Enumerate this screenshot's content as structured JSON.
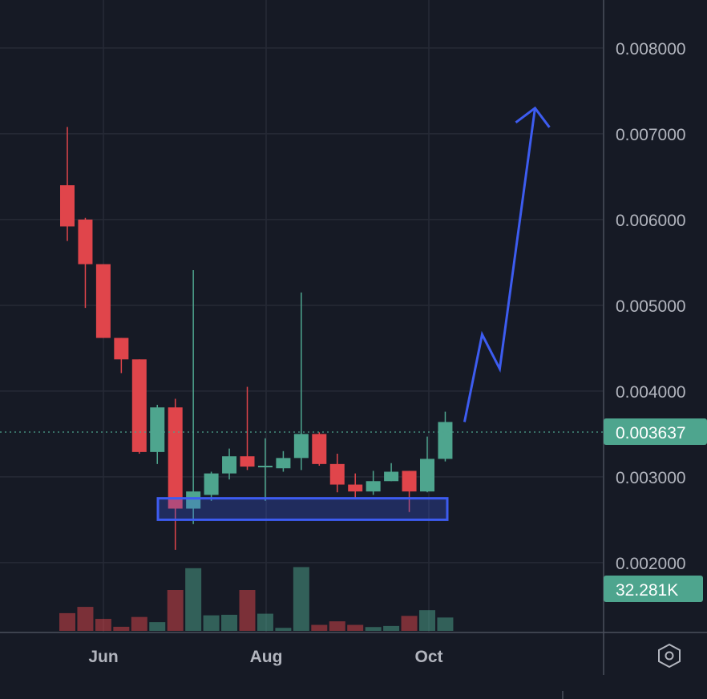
{
  "chart_data": {
    "type": "candlestick",
    "x_ticks": [
      "Jun",
      "Aug",
      "Oct"
    ],
    "y_ticks": [
      "0.008000",
      "0.007000",
      "0.006000",
      "0.005000",
      "0.004000",
      "0.003000",
      "0.002000"
    ],
    "ylim": [
      0.0013,
      0.0087
    ],
    "last_price_label": "0.003637",
    "last_volume_label": "32.281K",
    "colors": {
      "up": "#4ea58e",
      "down": "#e0454b",
      "drawing": "#3d5cf0",
      "background": "#161a25",
      "grid": "#262a36"
    },
    "candles": [
      {
        "o": 0.0064,
        "h": 0.00708,
        "l": 0.00575,
        "c": 0.00592,
        "v": 0.65
      },
      {
        "o": 0.006,
        "h": 0.00602,
        "l": 0.00497,
        "c": 0.00548,
        "v": 0.88
      },
      {
        "o": 0.00548,
        "h": 0.00548,
        "l": 0.00462,
        "c": 0.00462,
        "v": 0.44
      },
      {
        "o": 0.00462,
        "h": 0.00462,
        "l": 0.00421,
        "c": 0.00437,
        "v": 0.15
      },
      {
        "o": 0.00437,
        "h": 0.00437,
        "l": 0.00327,
        "c": 0.00329,
        "v": 0.51
      },
      {
        "o": 0.00329,
        "h": 0.00384,
        "l": 0.00315,
        "c": 0.00381,
        "v": 0.32
      },
      {
        "o": 0.00381,
        "h": 0.00391,
        "l": 0.00215,
        "c": 0.00263,
        "v": 1.5
      },
      {
        "o": 0.00263,
        "h": 0.00541,
        "l": 0.00245,
        "c": 0.00283,
        "v": 2.3
      },
      {
        "o": 0.00279,
        "h": 0.00306,
        "l": 0.00272,
        "c": 0.00304,
        "v": 0.57
      },
      {
        "o": 0.00304,
        "h": 0.00333,
        "l": 0.00297,
        "c": 0.00324,
        "v": 0.59
      },
      {
        "o": 0.00324,
        "h": 0.00405,
        "l": 0.00308,
        "c": 0.00312,
        "v": 1.5
      },
      {
        "o": 0.00313,
        "h": 0.00345,
        "l": 0.00272,
        "c": 0.00313,
        "v": 0.63
      },
      {
        "o": 0.0031,
        "h": 0.0033,
        "l": 0.00306,
        "c": 0.00322,
        "v": 0.11
      },
      {
        "o": 0.00322,
        "h": 0.00515,
        "l": 0.00308,
        "c": 0.0035,
        "v": 2.34
      },
      {
        "o": 0.0035,
        "h": 0.00352,
        "l": 0.00313,
        "c": 0.00315,
        "v": 0.22
      },
      {
        "o": 0.00315,
        "h": 0.00327,
        "l": 0.00282,
        "c": 0.00291,
        "v": 0.35
      },
      {
        "o": 0.00291,
        "h": 0.00304,
        "l": 0.00276,
        "c": 0.00283,
        "v": 0.22
      },
      {
        "o": 0.00283,
        "h": 0.00307,
        "l": 0.00279,
        "c": 0.00295,
        "v": 0.14
      },
      {
        "o": 0.00295,
        "h": 0.00316,
        "l": 0.00295,
        "c": 0.00306,
        "v": 0.18
      },
      {
        "o": 0.00307,
        "h": 0.00307,
        "l": 0.00259,
        "c": 0.00283,
        "v": 0.55
      },
      {
        "o": 0.00283,
        "h": 0.00347,
        "l": 0.00282,
        "c": 0.00321,
        "v": 0.76
      },
      {
        "o": 0.00321,
        "h": 0.00376,
        "l": 0.00318,
        "c": 0.00364,
        "v": 0.49
      }
    ],
    "drawings": {
      "support_box": {
        "y_top": 0.00275,
        "y_bottom": 0.0025
      },
      "projection_arrow": [
        [
          0.00364,
          0.0
        ],
        [
          0.00466,
          1.0
        ],
        [
          0.00426,
          2.0
        ],
        [
          0.0073,
          4.0
        ]
      ]
    }
  },
  "settings_icon": "hexagon-settings-icon"
}
